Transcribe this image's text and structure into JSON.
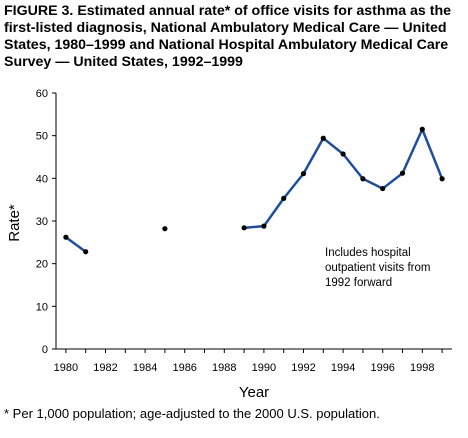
{
  "title": "FIGURE 3. Estimated annual rate* of office visits for asthma as the first-listed diagnosis, National Ambulatory Medical Care — United States, 1980–1999 and National Hospital Ambulatory Medical Care Survey — United States, 1992–1999",
  "footnote": "* Per 1,000 population; age-adjusted to the 2000 U.S. population.",
  "chart_data": {
    "type": "line",
    "title": "FIGURE 3. Estimated annual rate* of office visits for asthma as the first-listed diagnosis, National Ambulatory Medical Care — United States, 1980–1999 and National Hospital Ambulatory Medical Care Survey — United States, 1992–1999",
    "xlabel": "Year",
    "ylabel": "Rate*",
    "xlim": [
      1979.5,
      1999.5
    ],
    "ylim": [
      0,
      60
    ],
    "x_ticks": [
      "1980",
      "1982",
      "1984",
      "1986",
      "1988",
      "1990",
      "1992",
      "1994",
      "1996",
      "1998"
    ],
    "y_ticks": [
      "0",
      "10",
      "20",
      "30",
      "40",
      "50",
      "60"
    ],
    "grid": false,
    "legend": "none",
    "line_color": "#1f4e9c",
    "series": [
      {
        "x": [
          1980,
          1981,
          1982,
          1983,
          1984,
          1985,
          1986,
          1987,
          1988,
          1989,
          1990,
          1991,
          1992,
          1993,
          1994,
          1995,
          1996,
          1997,
          1998,
          1999
        ],
        "values": [
          26.2,
          22.8,
          null,
          null,
          null,
          28.2,
          null,
          null,
          null,
          28.4,
          28.8,
          35.3,
          41.1,
          49.4,
          45.7,
          39.9,
          37.6,
          41.2,
          51.5,
          39.9
        ]
      }
    ],
    "annotation": "Includes hospital\noutpatient visits from\n1992 forward"
  }
}
